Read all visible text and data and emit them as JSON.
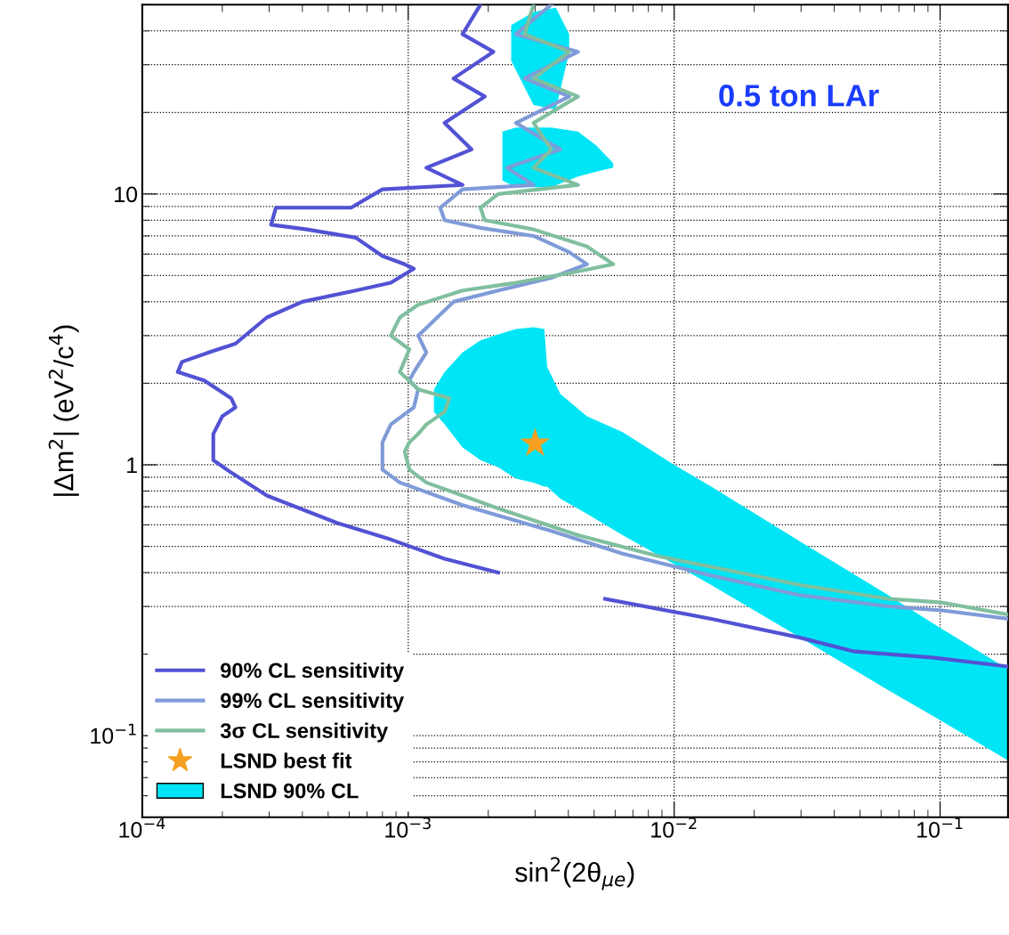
{
  "chart_data": {
    "type": "line",
    "xlabel": "sin$^{2}$(2θ$_{μe}$)",
    "ylabel": "|Δm$^{2}$| (eV$^{2}$/c$^{4}$)",
    "annotations": [
      "0.5 ton LAr"
    ],
    "log": "xy",
    "xlim": [
      0.0001,
      0.18
    ],
    "ylim": [
      0.05,
      50
    ],
    "xticks": [
      {
        "value": 0.0001,
        "label": "10$^{−4}$"
      },
      {
        "value": 0.001,
        "label": "10$^{−3}$"
      },
      {
        "value": 0.01,
        "label": "10$^{−2}$"
      },
      {
        "value": 0.1,
        "label": "10$^{−1}$"
      }
    ],
    "yticks": [
      {
        "value": 0.1,
        "label": "10$^{−1}$"
      },
      {
        "value": 1,
        "label": "1"
      },
      {
        "value": 10,
        "label": "10"
      }
    ],
    "grid": true,
    "legend": "bottom left",
    "series": [
      {
        "type": "area",
        "name": "LSND 90% CL",
        "color": "#00e5f5",
        "x": [
          0.00125,
          0.00137,
          0.0016,
          0.00187,
          0.00218,
          0.00254,
          0.00296,
          0.00325,
          0.00333,
          0.00373,
          0.0047,
          0.0064,
          0.01,
          0.0138,
          0.0298,
          0.064,
          0.1,
          0.18,
          0.18,
          0.1,
          0.064,
          0.0298,
          0.0138,
          0.01,
          0.0064,
          0.0047,
          0.00373,
          0.00333,
          0.00325,
          0.00296,
          0.00254,
          0.00218,
          0.00187,
          0.0016,
          0.00137,
          0.00125
        ],
        "values": [
          1.9,
          2.2,
          2.6,
          2.88,
          3.03,
          3.17,
          3.22,
          3.17,
          2.3,
          1.83,
          1.51,
          1.32,
          1.0,
          0.83,
          0.52,
          0.33,
          0.25,
          0.176,
          0.081,
          0.114,
          0.147,
          0.23,
          0.36,
          0.43,
          0.55,
          0.66,
          0.75,
          0.83,
          0.83,
          0.86,
          0.89,
          0.98,
          1.04,
          1.16,
          1.41,
          1.57
        ]
      },
      {
        "type": "area",
        "color": "#00e5f5",
        "x": [
          0.00226,
          0.00254,
          0.00345,
          0.00435,
          0.0051,
          0.0059,
          0.0059,
          0.0051,
          0.00435,
          0.00345,
          0.00254,
          0.00226
        ],
        "values": [
          17.0,
          17.6,
          17.6,
          17.0,
          15.1,
          13.0,
          12.5,
          12.1,
          11.6,
          10.6,
          10.6,
          11.2
        ]
      },
      {
        "type": "area",
        "color": "#00e5f5",
        "x": [
          0.00244,
          0.00296,
          0.00359,
          0.00403,
          0.00403,
          0.00359,
          0.00296,
          0.00244
        ],
        "values": [
          42,
          47,
          48.8,
          38.9,
          33.5,
          20.5,
          21.3,
          31
        ]
      },
      {
        "name": "90% CL sensitivity",
        "color": "#5252d4",
        "x": [
          0.00187,
          0.0016,
          0.00209,
          0.00148,
          0.00194,
          0.00137,
          0.00173,
          0.00117,
          0.0016,
          0.0008,
          0.00061,
          0.000318,
          0.000305,
          0.000416,
          0.000635,
          0.0008,
          0.00097,
          0.00105,
          0.00086,
          0.000635,
          0.0004,
          0.000294,
          0.000224,
          0.000178,
          0.000141,
          0.000136,
          0.000171,
          0.000216,
          0.000224,
          0.0002,
          0.000185,
          0.000185,
          0.000208,
          0.000294,
          0.00054,
          0.00086,
          0.00137,
          0.00218,
          null,
          0.0055,
          0.0138,
          0.0298,
          0.047,
          0.095,
          0.18
        ],
        "values": [
          50,
          38.9,
          33.5,
          26.7,
          22.9,
          18.3,
          14.6,
          12.5,
          10.8,
          10.4,
          8.9,
          8.9,
          7.7,
          7.4,
          6.9,
          5.9,
          5.5,
          5.3,
          4.7,
          4.4,
          4.0,
          3.5,
          2.8,
          2.6,
          2.4,
          2.2,
          2.05,
          1.76,
          1.63,
          1.51,
          1.3,
          1.04,
          0.96,
          0.77,
          0.61,
          0.53,
          0.45,
          0.4,
          null,
          0.32,
          0.27,
          0.23,
          0.205,
          0.194,
          0.18
        ]
      },
      {
        "name": "99% CL sensitivity",
        "color": "#7f9bd8",
        "x": [
          0.00345,
          0.00254,
          0.00435,
          0.00274,
          0.00403,
          0.00254,
          0.00373,
          0.00235,
          0.00296,
          0.0016,
          0.00132,
          0.00137,
          0.00187,
          0.00296,
          0.00403,
          0.0047,
          0.00345,
          0.00218,
          0.00148,
          0.00117,
          0.00109,
          0.00117,
          0.00105,
          0.00101,
          0.00109,
          0.00105,
          0.00086,
          0.0008,
          0.0008,
          0.00093,
          0.0016,
          0.00345,
          0.0064,
          0.0138,
          0.0298,
          0.064,
          0.102,
          0.18
        ],
        "values": [
          50,
          38.9,
          33.5,
          26.7,
          22.9,
          18.3,
          14.6,
          12.5,
          10.8,
          10.4,
          8.9,
          8.0,
          7.5,
          7.0,
          6.1,
          5.5,
          4.9,
          4.4,
          4.0,
          3.2,
          3.0,
          2.6,
          2.2,
          2.05,
          1.9,
          1.63,
          1.41,
          1.21,
          0.96,
          0.86,
          0.71,
          0.57,
          0.47,
          0.39,
          0.33,
          0.3,
          0.29,
          0.27
        ]
      },
      {
        "name": "3σ CL sensitivity",
        "color": "#80bf9f",
        "x": [
          0.00296,
          0.00274,
          0.00403,
          0.00296,
          0.00435,
          0.00296,
          0.00345,
          0.00296,
          0.00435,
          0.00218,
          0.00187,
          0.00194,
          0.00296,
          0.0047,
          0.0059,
          0.00403,
          0.00254,
          0.0016,
          0.00109,
          0.00093,
          0.00086,
          0.00101,
          0.00093,
          0.00109,
          0.00143,
          0.00137,
          0.00117,
          0.00109,
          0.00101,
          0.00097,
          0.00101,
          0.00117,
          0.00218,
          0.00435,
          0.0087,
          0.0138,
          0.0298,
          0.064,
          0.102,
          0.18
        ],
        "values": [
          50,
          38.9,
          33.5,
          26.7,
          22.9,
          18.3,
          14.6,
          12.5,
          10.8,
          10.0,
          8.9,
          8.0,
          7.4,
          6.4,
          5.5,
          5.1,
          4.7,
          4.4,
          3.9,
          3.5,
          3.0,
          2.67,
          2.2,
          1.9,
          1.76,
          1.57,
          1.41,
          1.3,
          1.21,
          1.12,
          0.96,
          0.86,
          0.69,
          0.55,
          0.46,
          0.42,
          0.36,
          0.32,
          0.31,
          0.28
        ]
      },
      {
        "type": "scatter",
        "name": "LSND best fit",
        "color": "#f5a020",
        "marker": "star",
        "x": [
          0.003
        ],
        "values": [
          1.2
        ]
      }
    ]
  }
}
